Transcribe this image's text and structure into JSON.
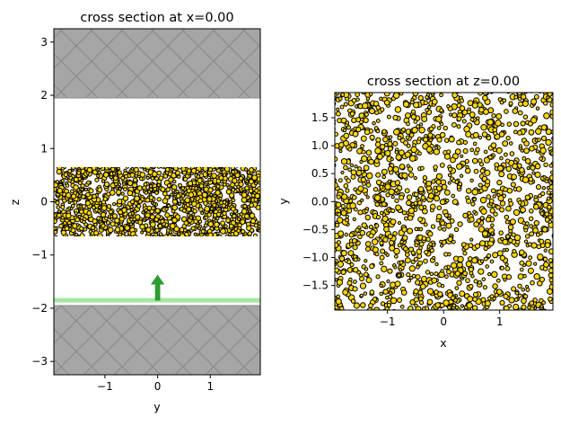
{
  "chart_data": [
    {
      "type": "scatter",
      "title": "cross section at x=0.00",
      "xlabel": "y",
      "ylabel": "z",
      "xlim": [
        -1.97,
        1.95
      ],
      "ylim": [
        -3.25,
        3.25
      ],
      "xticks": [
        -1,
        0,
        1
      ],
      "xtick_labels": [
        "−1",
        "0",
        "1"
      ],
      "yticks": [
        -3,
        -2,
        -1,
        0,
        1,
        2,
        3
      ],
      "ytick_labels": [
        "−3",
        "−2",
        "−1",
        "0",
        "1",
        "2",
        "3"
      ],
      "grid": false,
      "structures": {
        "pml_top": {
          "z_range": [
            1.95,
            3.25
          ],
          "color": "#a6a6a6",
          "hatch_color": "#8c8c8c"
        },
        "pml_bottom": {
          "z_range": [
            -3.25,
            -1.95
          ],
          "color": "#a6a6a6",
          "hatch_color": "#8c8c8c"
        },
        "particle_layer": {
          "z_range": [
            -0.65,
            0.65
          ],
          "particle_radius": 0.045,
          "fill": "#ffd700",
          "edge": "#000000"
        },
        "source": {
          "z": -1.85,
          "color": "#a8e6a3",
          "arrow_color": "#2ca02c",
          "arrow_y": 0,
          "arrow_z_range": [
            -1.85,
            -1.38
          ],
          "direction": "+z"
        }
      }
    },
    {
      "type": "scatter",
      "title": "cross section at z=0.00",
      "xlabel": "x",
      "ylabel": "y",
      "xlim": [
        -1.94,
        1.95
      ],
      "ylim": [
        -1.94,
        1.95
      ],
      "xticks": [
        -1,
        0,
        1
      ],
      "xtick_labels": [
        "−1",
        "0",
        "1"
      ],
      "yticks": [
        -1.5,
        -1.0,
        -0.5,
        0.0,
        0.5,
        1.0,
        1.5
      ],
      "ytick_labels": [
        "−1.5",
        "−1.0",
        "−0.5",
        "0.0",
        "0.5",
        "1.0",
        "1.5"
      ],
      "grid": false,
      "structures": {
        "particles": {
          "particle_radius": 0.05,
          "fill": "#ffd700",
          "edge": "#000000"
        }
      }
    }
  ]
}
